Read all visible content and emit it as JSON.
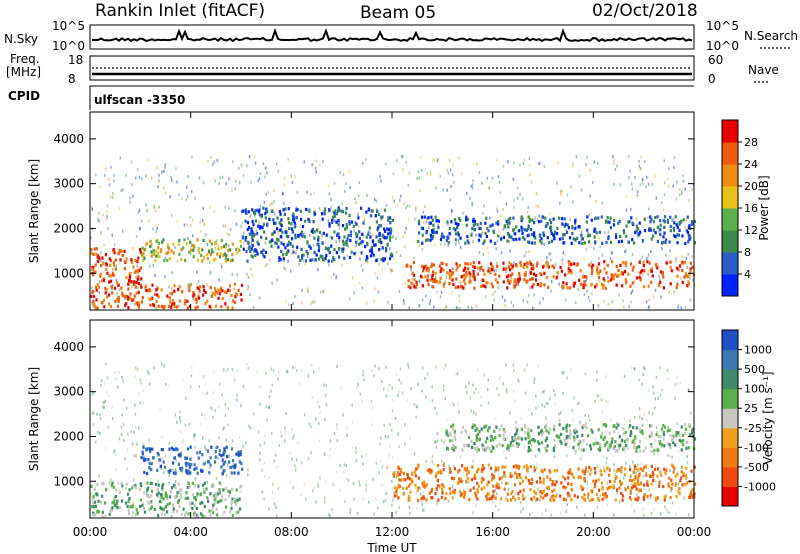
{
  "header": {
    "station": "Rankin Inlet (fitACF)",
    "beam": "Beam 05",
    "date": "02/Oct/2018"
  },
  "top_panels": {
    "nsky_label": "N.Sky",
    "nsky_ticks": [
      "10^5",
      "10^0"
    ],
    "nsearch_label": "N.Search",
    "nsearch_ticks": [
      "10^5",
      "10^0"
    ],
    "freq_label_1": "Freq.",
    "freq_label_2": "[MHz]",
    "freq_ticks": [
      "18",
      "8"
    ],
    "nave_label": "Nave",
    "nave_ticks": [
      "60",
      "0"
    ],
    "cpid_label": "CPID",
    "cpid_value": "ulfscan -3350"
  },
  "chart_data": [
    {
      "type": "heatmap",
      "title": "",
      "xlabel": "",
      "ylabel": "Slant Range [km]",
      "x_ticks": [
        "00:00",
        "04:00",
        "08:00",
        "12:00",
        "16:00",
        "20:00",
        "00:00"
      ],
      "y_ticks": [
        "1000",
        "2000",
        "3000",
        "4000"
      ],
      "ylim": [
        180,
        4600
      ],
      "colorbar": {
        "label": "Power [dB]",
        "ticks": [
          "4",
          "8",
          "12",
          "16",
          "20",
          "24",
          "28"
        ],
        "colors": [
          "#0022ff",
          "#2a5cc8",
          "#3a8a4a",
          "#5ab04a",
          "#e8c21a",
          "#f08a12",
          "#f05a10",
          "#e80000"
        ]
      },
      "regions": [
        {
          "hours": [
            0,
            6
          ],
          "range_km": [
            250,
            800
          ],
          "level": "high"
        },
        {
          "hours": [
            0,
            2
          ],
          "range_km": [
            800,
            1600
          ],
          "level": "high"
        },
        {
          "hours": [
            2,
            6
          ],
          "range_km": [
            1300,
            1800
          ],
          "level": "medium"
        },
        {
          "hours": [
            6,
            12
          ],
          "range_km": [
            1300,
            2500
          ],
          "level": "low"
        },
        {
          "hours": [
            12.5,
            24
          ],
          "range_km": [
            700,
            1300
          ],
          "level": "high"
        },
        {
          "hours": [
            13,
            24
          ],
          "range_km": [
            1700,
            2300
          ],
          "level": "low"
        }
      ]
    },
    {
      "type": "heatmap",
      "title": "",
      "xlabel": "Time UT",
      "ylabel": "Slant Range [km]",
      "x_ticks": [
        "00:00",
        "04:00",
        "08:00",
        "12:00",
        "16:00",
        "20:00",
        "00:00"
      ],
      "y_ticks": [
        "1000",
        "2000",
        "3000",
        "4000"
      ],
      "ylim": [
        180,
        4600
      ],
      "colorbar": {
        "label": "Velocity [m s⁻¹]",
        "ticks": [
          "1000",
          "500",
          "100",
          "25",
          "-25",
          "-100",
          "-500",
          "-1000"
        ],
        "colors": [
          "#2050c8",
          "#3a7ab0",
          "#3f8a6a",
          "#5ab04a",
          "#c8c8c0",
          "#f0a020",
          "#f07a10",
          "#f04a10",
          "#e80000"
        ]
      },
      "regions": [
        {
          "hours": [
            0,
            6
          ],
          "range_km": [
            250,
            1000
          ],
          "level": "near-zero"
        },
        {
          "hours": [
            2,
            6
          ],
          "range_km": [
            1200,
            1800
          ],
          "level": "positive"
        },
        {
          "hours": [
            12,
            24
          ],
          "range_km": [
            600,
            1400
          ],
          "level": "negative"
        },
        {
          "hours": [
            14,
            24
          ],
          "range_km": [
            1700,
            2300
          ],
          "level": "near-zero"
        }
      ]
    }
  ]
}
